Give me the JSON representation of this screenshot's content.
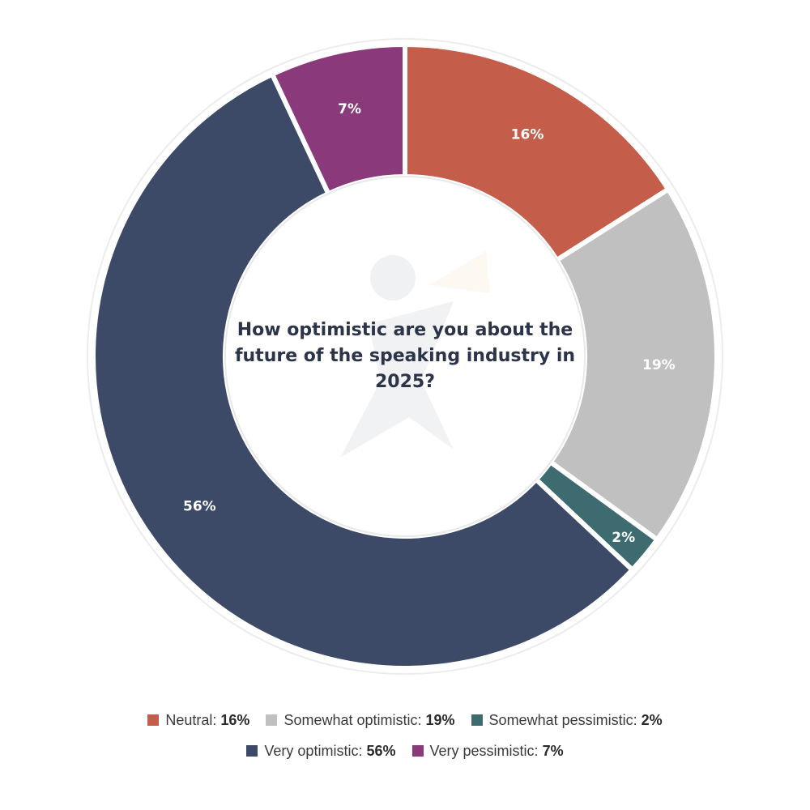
{
  "chart_data": {
    "type": "pie",
    "variant": "donut",
    "title": "How optimistic are you about the future of the speaking industry in 2025?",
    "categories": [
      "Neutral",
      "Somewhat optimistic",
      "Somewhat pessimistic",
      "Very optimistic",
      "Very pessimistic"
    ],
    "values": [
      16,
      19,
      2,
      56,
      7
    ],
    "value_labels": [
      "16%",
      "19%",
      "2%",
      "56%",
      "7%"
    ],
    "colors": [
      "#c45e4a",
      "#c0c0c0",
      "#3d6b70",
      "#3c4a68",
      "#8a3a7a"
    ],
    "legend": {
      "placement": "bottom",
      "items": [
        {
          "label": "Neutral:",
          "value": "16%"
        },
        {
          "label": "Somewhat optimistic:",
          "value": "19%"
        },
        {
          "label": "Somewhat pessimistic:",
          "value": "2%"
        },
        {
          "label": "Very optimistic:",
          "value": "56%"
        },
        {
          "label": "Very pessimistic:",
          "value": "7%"
        }
      ]
    }
  }
}
